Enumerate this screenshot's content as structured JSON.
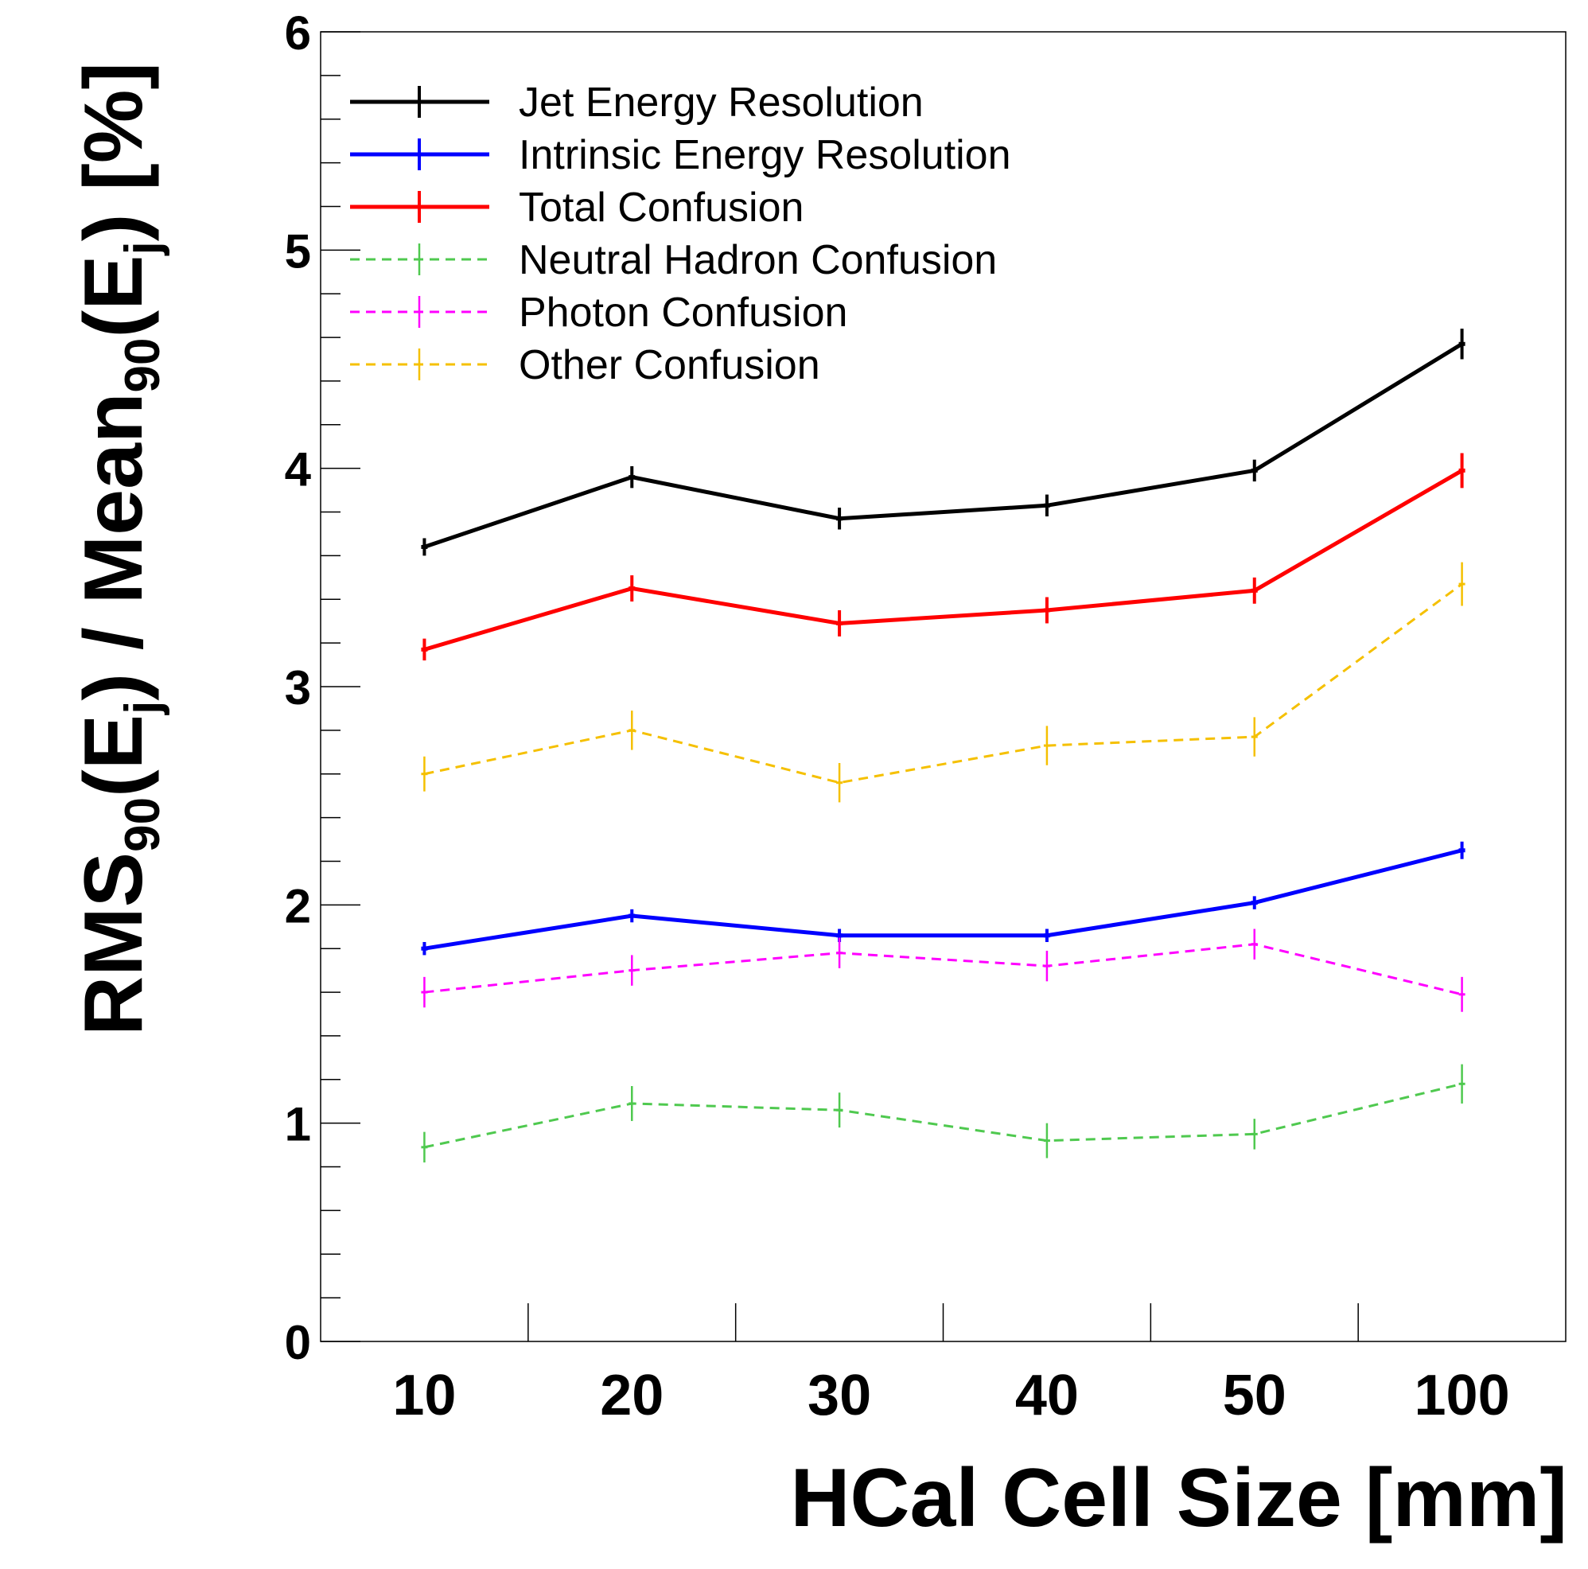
{
  "chart_data": {
    "type": "line",
    "title": "",
    "xlabel": "HCal Cell Size [mm]",
    "ylabel_parts": {
      "rms": "RMS",
      "sub1": "90",
      "open1": "(E",
      "subj1": "j",
      "close1": ") / Mean",
      "sub2": "90",
      "open2": "(E",
      "subj2": "j",
      "close2": ") [%]"
    },
    "categories": [
      "10",
      "20",
      "30",
      "40",
      "50",
      "100"
    ],
    "ylim": [
      0,
      6
    ],
    "yticks": [
      "0",
      "1",
      "2",
      "3",
      "4",
      "5",
      "6"
    ],
    "grid": false,
    "legend_position": "top-left",
    "series": [
      {
        "name": "Jet Energy Resolution",
        "color": "#000000",
        "dash": "solid",
        "values": [
          3.64,
          3.96,
          3.77,
          3.83,
          3.99,
          4.57
        ],
        "errors": [
          0.04,
          0.05,
          0.05,
          0.05,
          0.05,
          0.07
        ]
      },
      {
        "name": "Intrinsic Energy Resolution",
        "color": "#0000ff",
        "dash": "solid",
        "values": [
          1.8,
          1.95,
          1.86,
          1.86,
          2.01,
          2.25
        ],
        "errors": [
          0.03,
          0.03,
          0.03,
          0.03,
          0.03,
          0.04
        ]
      },
      {
        "name": "Total Confusion",
        "color": "#ff0000",
        "dash": "solid",
        "values": [
          3.17,
          3.45,
          3.29,
          3.35,
          3.44,
          3.99
        ],
        "errors": [
          0.05,
          0.06,
          0.06,
          0.06,
          0.06,
          0.08
        ]
      },
      {
        "name": "Neutral Hadron Confusion",
        "color": "#4fc94f",
        "dash": "dashed",
        "values": [
          0.89,
          1.09,
          1.06,
          0.92,
          0.95,
          1.18
        ],
        "errors": [
          0.07,
          0.08,
          0.08,
          0.08,
          0.07,
          0.09
        ]
      },
      {
        "name": "Photon Confusion",
        "color": "#ff00ff",
        "dash": "dashed",
        "values": [
          1.6,
          1.7,
          1.78,
          1.72,
          1.82,
          1.59
        ],
        "errors": [
          0.07,
          0.07,
          0.07,
          0.07,
          0.07,
          0.08
        ]
      },
      {
        "name": "Other Confusion",
        "color": "#f5c000",
        "dash": "dashed",
        "values": [
          2.6,
          2.8,
          2.56,
          2.73,
          2.77,
          3.47
        ],
        "errors": [
          0.08,
          0.09,
          0.09,
          0.09,
          0.09,
          0.1
        ]
      }
    ]
  }
}
